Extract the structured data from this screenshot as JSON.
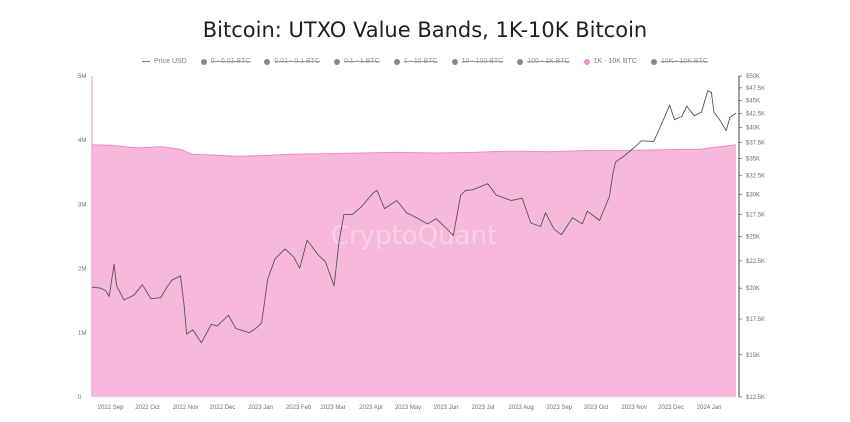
{
  "chart_data": {
    "type": "area",
    "title": "Bitcoin: UTXO Value Bands, 1K-10K Bitcoin",
    "watermark": "CryptoQuant",
    "legend": {
      "placement": "top",
      "items": [
        {
          "label": "Price USD",
          "marker": "line",
          "color": "#777777",
          "active": true
        },
        {
          "label": "0 - 0.01 BTC",
          "marker": "dot",
          "color": "#888888",
          "active": false
        },
        {
          "label": "0.01 - 0.1 BTC",
          "marker": "dot",
          "color": "#888888",
          "active": false
        },
        {
          "label": "0.1 - 1 BTC",
          "marker": "dot",
          "color": "#888888",
          "active": false
        },
        {
          "label": "1 - 10 BTC",
          "marker": "dot",
          "color": "#888888",
          "active": false
        },
        {
          "label": "10 - 100 BTC",
          "marker": "dot",
          "color": "#888888",
          "active": false
        },
        {
          "label": "100 - 1K BTC",
          "marker": "dot",
          "color": "#888888",
          "active": false
        },
        {
          "label": "1K - 10K BTC",
          "marker": "dot",
          "color": "#f48cc8",
          "active": true
        },
        {
          "label": "10K - 10K BTC",
          "marker": "dot",
          "color": "#888888",
          "active": false
        }
      ]
    },
    "x_ticks": [
      "2022 Sep",
      "2022 Oct",
      "2022 Nov",
      "2022 Dec",
      "2023 Jan",
      "2023 Feb",
      "2023 Mar",
      "2023 Apr",
      "2023 May",
      "2023 Jun",
      "2023 Jul",
      "2023 Aug",
      "2023 Sep",
      "2023 Oct",
      "2023 Nov",
      "2023 Dec",
      "2024 Jan"
    ],
    "xlim": [
      "2022-08-25",
      "2024-01-31"
    ],
    "y_left": {
      "ylim": [
        0,
        5000000
      ],
      "ticks": [
        {
          "v": 0,
          "label": "0"
        },
        {
          "v": 1000000,
          "label": "1M"
        },
        {
          "v": 2000000,
          "label": "2M"
        },
        {
          "v": 3000000,
          "label": "3M"
        },
        {
          "v": 4000000,
          "label": "4M"
        },
        {
          "v": 5000000,
          "label": "5M"
        }
      ]
    },
    "y_right": {
      "scale": "log",
      "ylim": [
        12500,
        50000
      ],
      "ticks": [
        {
          "v": 12500,
          "label": "$12.5K"
        },
        {
          "v": 15000,
          "label": "$15K"
        },
        {
          "v": 17500,
          "label": "$17.5K"
        },
        {
          "v": 20000,
          "label": "$20K"
        },
        {
          "v": 22500,
          "label": "$22.5K"
        },
        {
          "v": 25000,
          "label": "$25K"
        },
        {
          "v": 27500,
          "label": "$27.5K"
        },
        {
          "v": 30000,
          "label": "$30K"
        },
        {
          "v": 32500,
          "label": "$32.5K"
        },
        {
          "v": 35000,
          "label": "$35K"
        },
        {
          "v": 37500,
          "label": "$37.5K"
        },
        {
          "v": 40000,
          "label": "$40K"
        },
        {
          "v": 42500,
          "label": "$42.5K"
        },
        {
          "v": 45000,
          "label": "$45K"
        },
        {
          "v": 47500,
          "label": "$47.5K"
        },
        {
          "v": 50000,
          "label": "$50K"
        }
      ]
    },
    "grid": false,
    "series": [
      {
        "name": "1K - 10K BTC",
        "axis": "left",
        "color": "#f7b8dc",
        "points": [
          [
            "2022-08-25",
            3930000
          ],
          [
            "2022-09-10",
            3920000
          ],
          [
            "2022-10-01",
            3880000
          ],
          [
            "2022-10-20",
            3900000
          ],
          [
            "2022-11-05",
            3860000
          ],
          [
            "2022-11-15",
            3780000
          ],
          [
            "2022-12-01",
            3770000
          ],
          [
            "2022-12-20",
            3750000
          ],
          [
            "2023-01-10",
            3760000
          ],
          [
            "2023-02-01",
            3780000
          ],
          [
            "2023-03-01",
            3790000
          ],
          [
            "2023-04-01",
            3800000
          ],
          [
            "2023-05-01",
            3810000
          ],
          [
            "2023-06-01",
            3800000
          ],
          [
            "2023-07-01",
            3810000
          ],
          [
            "2023-08-01",
            3830000
          ],
          [
            "2023-09-01",
            3820000
          ],
          [
            "2023-10-01",
            3840000
          ],
          [
            "2023-11-01",
            3840000
          ],
          [
            "2023-12-01",
            3850000
          ],
          [
            "2024-01-01",
            3860000
          ],
          [
            "2024-01-31",
            3930000
          ]
        ]
      },
      {
        "name": "Price USD",
        "axis": "right",
        "color": "#555555",
        "points": [
          [
            "2022-08-25",
            20100
          ],
          [
            "2022-09-01",
            20000
          ],
          [
            "2022-09-05",
            19800
          ],
          [
            "2022-09-08",
            19300
          ],
          [
            "2022-09-12",
            22200
          ],
          [
            "2022-09-14",
            20200
          ],
          [
            "2022-09-20",
            19000
          ],
          [
            "2022-09-28",
            19400
          ],
          [
            "2022-10-05",
            20300
          ],
          [
            "2022-10-12",
            19100
          ],
          [
            "2022-10-20",
            19200
          ],
          [
            "2022-10-25",
            20100
          ],
          [
            "2022-10-29",
            20700
          ],
          [
            "2022-11-05",
            21100
          ],
          [
            "2022-11-08",
            18500
          ],
          [
            "2022-11-10",
            16400
          ],
          [
            "2022-11-15",
            16700
          ],
          [
            "2022-11-22",
            15800
          ],
          [
            "2022-11-30",
            17100
          ],
          [
            "2022-12-05",
            17000
          ],
          [
            "2022-12-14",
            17800
          ],
          [
            "2022-12-20",
            16800
          ],
          [
            "2022-12-31",
            16500
          ],
          [
            "2023-01-05",
            16800
          ],
          [
            "2023-01-10",
            17200
          ],
          [
            "2023-01-13",
            19300
          ],
          [
            "2023-01-15",
            20800
          ],
          [
            "2023-01-21",
            22700
          ],
          [
            "2023-01-29",
            23700
          ],
          [
            "2023-02-05",
            22900
          ],
          [
            "2023-02-10",
            21800
          ],
          [
            "2023-02-16",
            24600
          ],
          [
            "2023-02-25",
            23100
          ],
          [
            "2023-03-03",
            22400
          ],
          [
            "2023-03-10",
            20200
          ],
          [
            "2023-03-14",
            24400
          ],
          [
            "2023-03-18",
            27500
          ],
          [
            "2023-03-25",
            27500
          ],
          [
            "2023-04-01",
            28400
          ],
          [
            "2023-04-11",
            30200
          ],
          [
            "2023-04-14",
            30500
          ],
          [
            "2023-04-20",
            28200
          ],
          [
            "2023-04-30",
            29200
          ],
          [
            "2023-05-08",
            27700
          ],
          [
            "2023-05-15",
            27200
          ],
          [
            "2023-05-25",
            26400
          ],
          [
            "2023-06-01",
            27000
          ],
          [
            "2023-06-10",
            25800
          ],
          [
            "2023-06-15",
            25100
          ],
          [
            "2023-06-21",
            29900
          ],
          [
            "2023-06-25",
            30500
          ],
          [
            "2023-07-01",
            30600
          ],
          [
            "2023-07-13",
            31400
          ],
          [
            "2023-07-20",
            29900
          ],
          [
            "2023-08-01",
            29200
          ],
          [
            "2023-08-10",
            29500
          ],
          [
            "2023-08-17",
            26500
          ],
          [
            "2023-08-25",
            26100
          ],
          [
            "2023-08-29",
            27700
          ],
          [
            "2023-09-05",
            25800
          ],
          [
            "2023-09-11",
            25200
          ],
          [
            "2023-09-20",
            27100
          ],
          [
            "2023-09-28",
            26400
          ],
          [
            "2023-10-02",
            27900
          ],
          [
            "2023-10-12",
            26800
          ],
          [
            "2023-10-20",
            29700
          ],
          [
            "2023-10-23",
            33000
          ],
          [
            "2023-10-25",
            34500
          ],
          [
            "2023-11-01",
            35400
          ],
          [
            "2023-11-09",
            36700
          ],
          [
            "2023-11-15",
            37800
          ],
          [
            "2023-11-25",
            37700
          ],
          [
            "2023-12-04",
            41900
          ],
          [
            "2023-12-08",
            44100
          ],
          [
            "2023-12-12",
            41400
          ],
          [
            "2023-12-18",
            42000
          ],
          [
            "2023-12-22",
            43900
          ],
          [
            "2023-12-28",
            42100
          ],
          [
            "2024-01-03",
            42800
          ],
          [
            "2024-01-08",
            46900
          ],
          [
            "2024-01-11",
            46600
          ],
          [
            "2024-01-13",
            42800
          ],
          [
            "2024-01-18",
            41300
          ],
          [
            "2024-01-23",
            39500
          ],
          [
            "2024-01-26",
            41800
          ],
          [
            "2024-01-31",
            42600
          ]
        ]
      }
    ]
  }
}
